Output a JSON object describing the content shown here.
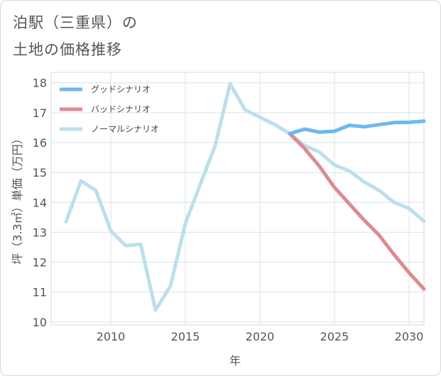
{
  "title_line1": "泊駅（三重県）の",
  "title_line2": "土地の価格推移",
  "chart_data": {
    "type": "line",
    "xlabel": "年",
    "ylabel": "坪（3.3㎡）単価（万円）",
    "xlim": [
      2006,
      2031
    ],
    "ylim": [
      9.9,
      18.35
    ],
    "xticks": [
      2010,
      2015,
      2020,
      2025,
      2030
    ],
    "yticks": [
      10,
      11,
      12,
      13,
      14,
      15,
      16,
      17,
      18
    ],
    "grid": true,
    "legend_position": "top-left",
    "series": [
      {
        "name": "グッドシナリオ",
        "color": "#6cb9ef",
        "x": [
          2022,
          2023,
          2024,
          2025,
          2026,
          2027,
          2028,
          2029,
          2030,
          2031
        ],
        "y": [
          16.3,
          16.45,
          16.35,
          16.38,
          16.58,
          16.53,
          16.6,
          16.67,
          16.68,
          16.72
        ]
      },
      {
        "name": "バッドシナリオ",
        "color": "#de8a91",
        "x": [
          2022,
          2023,
          2024,
          2025,
          2026,
          2027,
          2028,
          2029,
          2030,
          2031
        ],
        "y": [
          16.3,
          15.8,
          15.2,
          14.5,
          13.95,
          13.4,
          12.9,
          12.25,
          11.65,
          11.1
        ]
      },
      {
        "name": "ノーマルシナリオ",
        "color": "#bcdfec",
        "x": [
          2007,
          2008,
          2009,
          2010,
          2011,
          2012,
          2013,
          2014,
          2015,
          2016,
          2017,
          2018,
          2019,
          2020,
          2021,
          2022,
          2023,
          2024,
          2025,
          2026,
          2027,
          2028,
          2029,
          2030,
          2031
        ],
        "y": [
          13.35,
          14.72,
          14.4,
          13.05,
          12.55,
          12.6,
          10.4,
          11.2,
          13.3,
          14.6,
          15.9,
          17.97,
          17.1,
          16.85,
          16.6,
          16.3,
          15.9,
          15.68,
          15.25,
          15.05,
          14.68,
          14.4,
          14.0,
          13.8,
          13.37
        ]
      }
    ]
  }
}
